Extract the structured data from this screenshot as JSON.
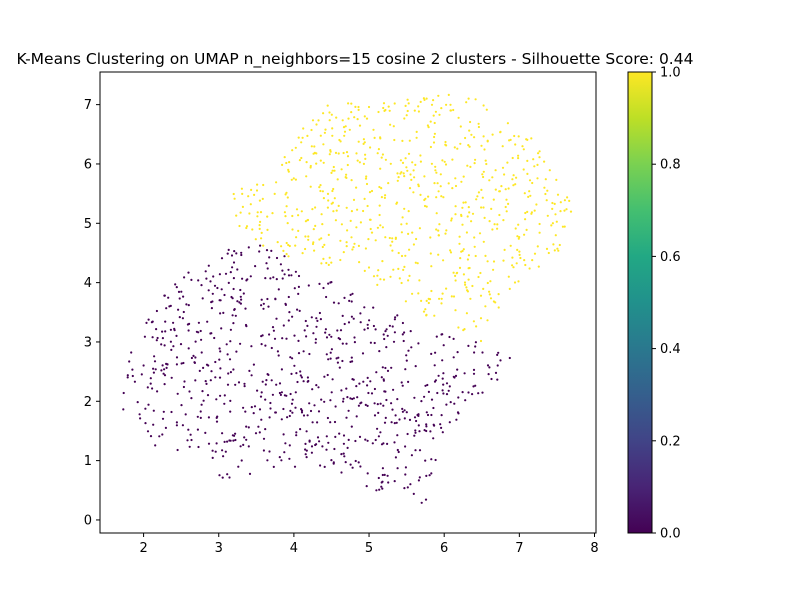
{
  "chart_data": {
    "type": "scatter",
    "title": "K-Means Clustering on UMAP n_neighbors=15 cosine 2 clusters - Silhouette Score: 0.44",
    "xlabel": "",
    "ylabel": "",
    "xlim": [
      1.42,
      8.02
    ],
    "ylim": [
      -0.22,
      7.55
    ],
    "xticks": [
      "2",
      "3",
      "4",
      "5",
      "6",
      "7",
      "8"
    ],
    "yticks": [
      "0",
      "1",
      "2",
      "3",
      "4",
      "5",
      "6",
      "7"
    ],
    "grid": false,
    "colormap": "viridis",
    "colorbar": {
      "range": [
        0.0,
        1.0
      ],
      "ticks": [
        "0.0",
        "0.2",
        "0.4",
        "0.6",
        "0.8",
        "1.0"
      ]
    },
    "series": [
      {
        "cluster": 0,
        "color": "#440154",
        "approx_point_count": 800,
        "region_polygon": [
          [
            1.7,
            1.9
          ],
          [
            1.75,
            2.6
          ],
          [
            2.0,
            3.4
          ],
          [
            2.5,
            4.1
          ],
          [
            3.2,
            4.6
          ],
          [
            3.7,
            4.7
          ],
          [
            4.2,
            4.2
          ],
          [
            4.7,
            3.9
          ],
          [
            5.2,
            3.6
          ],
          [
            5.7,
            3.3
          ],
          [
            6.2,
            3.1
          ],
          [
            6.9,
            2.8
          ],
          [
            6.7,
            2.2
          ],
          [
            6.3,
            2.0
          ],
          [
            6.0,
            1.3
          ],
          [
            5.8,
            0.6
          ],
          [
            5.75,
            0.15
          ],
          [
            5.5,
            0.5
          ],
          [
            5.0,
            0.5
          ],
          [
            4.5,
            0.8
          ],
          [
            3.8,
            0.8
          ],
          [
            3.1,
            0.65
          ],
          [
            2.7,
            1.0
          ],
          [
            2.2,
            1.2
          ],
          [
            1.9,
            1.5
          ]
        ]
      },
      {
        "cluster": 1,
        "color": "#fde725",
        "approx_point_count": 700,
        "region_polygon": [
          [
            3.15,
            5.6
          ],
          [
            3.6,
            5.75
          ],
          [
            4.1,
            6.6
          ],
          [
            4.4,
            7.0
          ],
          [
            5.0,
            7.1
          ],
          [
            5.8,
            7.2
          ],
          [
            6.3,
            7.2
          ],
          [
            6.8,
            6.9
          ],
          [
            7.1,
            6.6
          ],
          [
            7.4,
            6.0
          ],
          [
            7.7,
            5.3
          ],
          [
            7.65,
            4.6
          ],
          [
            7.2,
            4.2
          ],
          [
            6.8,
            3.7
          ],
          [
            6.6,
            3.0
          ],
          [
            6.3,
            3.0
          ],
          [
            5.8,
            3.4
          ],
          [
            5.2,
            3.9
          ],
          [
            4.7,
            4.2
          ],
          [
            4.2,
            4.3
          ],
          [
            3.6,
            4.6
          ],
          [
            3.25,
            4.95
          ]
        ]
      }
    ]
  }
}
